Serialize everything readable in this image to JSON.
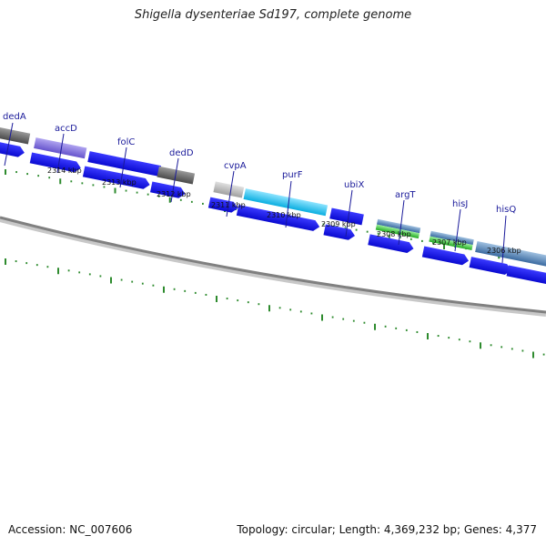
{
  "title": "Shigella dysenteriae Sd197, complete genome",
  "footer": {
    "accession": "Accession: NC_007606",
    "summary": "Topology: circular; Length: 4,369,232 bp; Genes: 4,377"
  },
  "gene_labels": [
    "dedA",
    "accD",
    "folC",
    "dedD",
    "cvpA",
    "purF",
    "ubiX",
    "argT",
    "hisJ",
    "hisQ"
  ],
  "kbp_labels": [
    "2314 kbp",
    "2313 kbp",
    "2312 kbp",
    "2311 kbp",
    "2310 kbp",
    "2309 kbp",
    "2308 kbp",
    "2307 kbp",
    "2306 kbp"
  ],
  "colors": {
    "cds": "#1010e6",
    "backbone": "#808080",
    "tick": "#2e8b2e",
    "gene_label": "#1a1a9a",
    "gray_feature": "#707070",
    "light_gray_feature": "#b8b8b8",
    "purple_feature": "#7b68d8",
    "cyan_feature": "#1ec0ee",
    "steel_feature": "#4a7ab0",
    "green_feature": "#3ec83e"
  }
}
